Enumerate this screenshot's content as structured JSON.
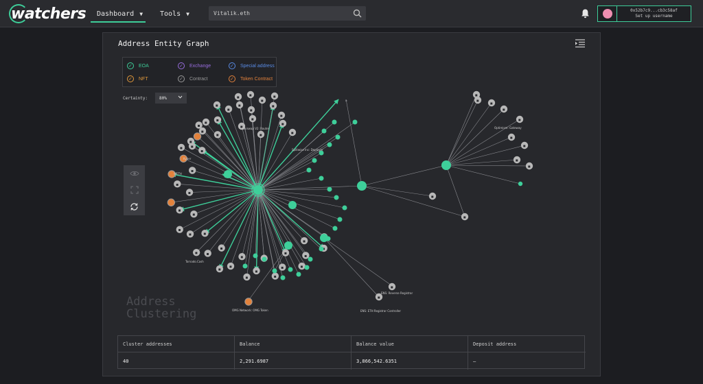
{
  "app": {
    "brand": "watchers",
    "nav": [
      {
        "label": "Dashboard",
        "active": true
      },
      {
        "label": "Tools",
        "active": false
      }
    ],
    "search": {
      "value": "Vitalik.eth",
      "icon": "search-icon"
    },
    "user": {
      "address": "0x52b7c9...cb3c58af",
      "cta": "Set up username"
    }
  },
  "panel": {
    "title": "Address Entity Graph",
    "legend": [
      {
        "label": "EOA",
        "color": "#3ecf9a"
      },
      {
        "label": "Exchange",
        "color": "#9a6ee0"
      },
      {
        "label": "Special address",
        "color": "#5a8ce6"
      },
      {
        "label": "NFT",
        "color": "#e39a3c"
      },
      {
        "label": "Contract",
        "color": "#9a9a9a"
      },
      {
        "label": "Token Contract",
        "color": "#e3823c"
      }
    ],
    "certainty": {
      "label": "Certainty:",
      "value": "80%"
    },
    "watermark": [
      "Address",
      "Clustering"
    ],
    "node_labels": [
      "Tornado.Cash",
      "OMG Network: OMG Token",
      "ENS: Reverse Registrar",
      "ENS: ETH Registrar Controller",
      "Splitwise Inc: Deployer",
      "Uniswap V2: Router",
      "Optimism: Gateway",
      "Kyber",
      "WETH"
    ],
    "table": {
      "headers": [
        "Cluster addresses",
        "Balance",
        "Balance value",
        "Deposit address"
      ],
      "row": [
        "40",
        "2,291.6987",
        "3,866,542.6351",
        "–"
      ]
    }
  },
  "colors": {
    "eoa": "#3ecf9a",
    "contract": "#b8b8b8",
    "token": "#e3823c",
    "edge": "#8a8b90"
  }
}
